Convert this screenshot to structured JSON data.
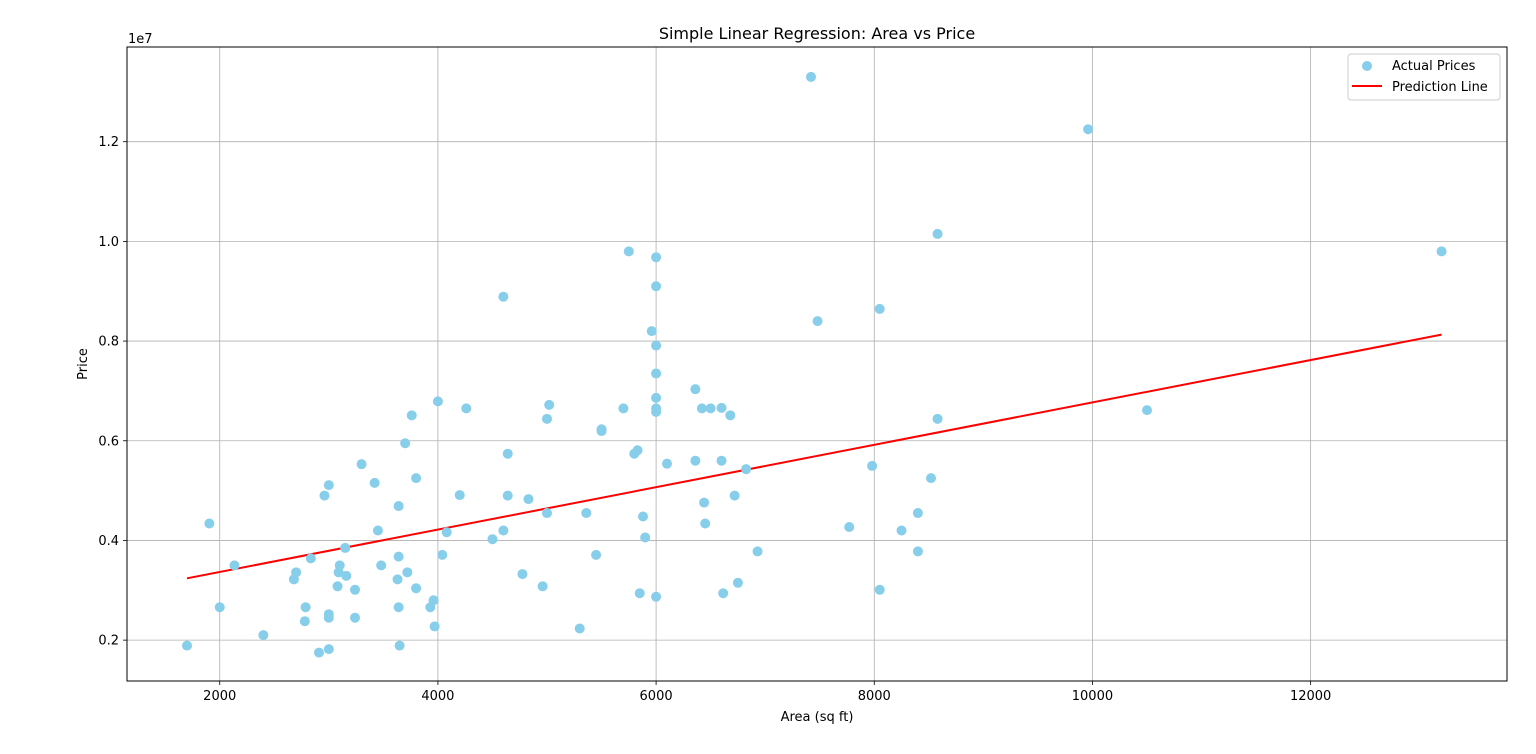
{
  "chart_data": {
    "type": "scatter",
    "title": "Simple Linear Regression: Area vs Price",
    "xlabel": "Area (sq ft)",
    "ylabel": "Price",
    "y_offset_label": "1e7",
    "xlim": [
      1150,
      13800
    ],
    "ylim": [
      1180000,
      13900000
    ],
    "x_ticks": [
      2000,
      4000,
      6000,
      8000,
      10000,
      12000
    ],
    "x_tick_labels": [
      "2000",
      "4000",
      "6000",
      "8000",
      "10000",
      "12000"
    ],
    "y_ticks": [
      2000000,
      4000000,
      6000000,
      8000000,
      10000000,
      12000000
    ],
    "y_tick_labels": [
      "0.2",
      "0.4",
      "0.6",
      "0.8",
      "1.0",
      "1.2"
    ],
    "grid": true,
    "legend_position": "top-right",
    "colors": {
      "scatter": "#87ceeb",
      "line": "#ff0000"
    },
    "series": [
      {
        "name": "Actual Prices",
        "kind": "scatter",
        "points": [
          [
            7420,
            13300000
          ],
          [
            9960,
            12250000
          ],
          [
            8580,
            10150000
          ],
          [
            13200,
            9800000
          ],
          [
            5750,
            9800000
          ],
          [
            6000,
            9681000
          ],
          [
            6000,
            9100000
          ],
          [
            4600,
            8890000
          ],
          [
            8050,
            8645000
          ],
          [
            7480,
            8400000
          ],
          [
            5960,
            8200000
          ],
          [
            6000,
            7910000
          ],
          [
            6000,
            7350000
          ],
          [
            6360,
            7035000
          ],
          [
            6000,
            6860000
          ],
          [
            4000,
            6790000
          ],
          [
            5020,
            6720000
          ],
          [
            6600,
            6660000
          ],
          [
            6500,
            6650000
          ],
          [
            6420,
            6650000
          ],
          [
            5700,
            6650000
          ],
          [
            4260,
            6650000
          ],
          [
            6000,
            6650000
          ],
          [
            6000,
            6580000
          ],
          [
            10500,
            6615000
          ],
          [
            3760,
            6510000
          ],
          [
            6680,
            6510000
          ],
          [
            8580,
            6440000
          ],
          [
            5000,
            6440000
          ],
          [
            5500,
            6230000
          ],
          [
            5500,
            6195000
          ],
          [
            3700,
            5950000
          ],
          [
            5830,
            5810000
          ],
          [
            5800,
            5740000
          ],
          [
            4640,
            5740000
          ],
          [
            6360,
            5600000
          ],
          [
            6600,
            5600000
          ],
          [
            6100,
            5540000
          ],
          [
            3300,
            5530000
          ],
          [
            6825,
            5430000
          ],
          [
            7980,
            5495000
          ],
          [
            3800,
            5250000
          ],
          [
            8520,
            5250000
          ],
          [
            3420,
            5155000
          ],
          [
            3000,
            5110000
          ],
          [
            2960,
            4900000
          ],
          [
            4640,
            4900000
          ],
          [
            6720,
            4900000
          ],
          [
            4200,
            4910000
          ],
          [
            4830,
            4830000
          ],
          [
            6440,
            4760000
          ],
          [
            3640,
            4690000
          ],
          [
            5360,
            4550000
          ],
          [
            5000,
            4550000
          ],
          [
            8400,
            4550000
          ],
          [
            5880,
            4480000
          ],
          [
            6450,
            4340000
          ],
          [
            1905,
            4340000
          ],
          [
            7770,
            4270000
          ],
          [
            4600,
            4200000
          ],
          [
            4080,
            4165000
          ],
          [
            3450,
            4200000
          ],
          [
            8250,
            4200000
          ],
          [
            5900,
            4060000
          ],
          [
            4500,
            4025000
          ],
          [
            3150,
            3850000
          ],
          [
            6930,
            3780000
          ],
          [
            8400,
            3780000
          ],
          [
            4040,
            3710000
          ],
          [
            5450,
            3710000
          ],
          [
            3640,
            3675000
          ],
          [
            2835,
            3640000
          ],
          [
            2135,
            3500000
          ],
          [
            3480,
            3500000
          ],
          [
            3100,
            3500000
          ],
          [
            2700,
            3360000
          ],
          [
            3090,
            3360000
          ],
          [
            3720,
            3360000
          ],
          [
            4775,
            3325000
          ],
          [
            3160,
            3290000
          ],
          [
            2680,
            3220000
          ],
          [
            3630,
            3220000
          ],
          [
            6750,
            3150000
          ],
          [
            3080,
            3080000
          ],
          [
            4960,
            3080000
          ],
          [
            3800,
            3040000
          ],
          [
            3240,
            3010000
          ],
          [
            8050,
            3010000
          ],
          [
            5850,
            2940000
          ],
          [
            6615,
            2940000
          ],
          [
            6000,
            2870000
          ],
          [
            3960,
            2800000
          ],
          [
            2000,
            2660000
          ],
          [
            2787,
            2660000
          ],
          [
            3640,
            2660000
          ],
          [
            3930,
            2660000
          ],
          [
            3000,
            2520000
          ],
          [
            3000,
            2450000
          ],
          [
            3240,
            2450000
          ],
          [
            2780,
            2380000
          ],
          [
            3970,
            2275000
          ],
          [
            5300,
            2233000
          ],
          [
            2400,
            2100000
          ],
          [
            1700,
            1890000
          ],
          [
            3649,
            1890000
          ],
          [
            3000,
            1820000
          ],
          [
            2910,
            1750000
          ]
        ]
      },
      {
        "name": "Prediction Line",
        "kind": "line",
        "points": [
          [
            1700,
            3240000
          ],
          [
            13200,
            8130000
          ]
        ]
      }
    ]
  }
}
